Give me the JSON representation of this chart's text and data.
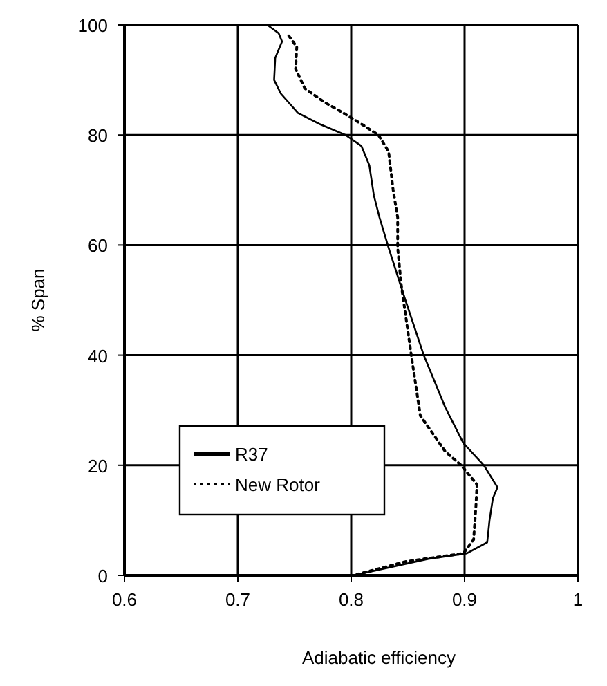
{
  "chart_data": {
    "type": "line",
    "xlabel": "Adiabatic efficiency",
    "ylabel": "% Span",
    "xlim": [
      0.6,
      1
    ],
    "xticks": [
      0.6,
      0.7,
      0.8,
      0.9,
      1
    ],
    "ylim": [
      0,
      100
    ],
    "yticks": [
      0,
      20,
      40,
      60,
      80,
      100
    ],
    "grid": true,
    "legend": "bottom left",
    "marker": "none",
    "series": [
      {
        "name": "R37",
        "color": "#000000",
        "line_style": "solid",
        "x": [
          0.726,
          0.736,
          0.739,
          0.733,
          0.732,
          0.738,
          0.753,
          0.772,
          0.795,
          0.809,
          0.816,
          0.82,
          0.825,
          0.833,
          0.847,
          0.864,
          0.883,
          0.899,
          0.917,
          0.929,
          0.925,
          0.922,
          0.92,
          0.902,
          0.868,
          0.802
        ],
        "values": [
          100,
          98.5,
          97,
          94,
          90,
          87.5,
          84,
          82,
          80,
          78,
          74.5,
          69,
          65,
          59.5,
          50.5,
          40,
          30.5,
          24,
          20,
          16,
          14,
          10,
          6,
          4,
          3,
          0
        ]
      },
      {
        "name": "New Rotor",
        "color": "#000000",
        "line_style": "dotted",
        "x": [
          0.745,
          0.752,
          0.751,
          0.759,
          0.776,
          0.793,
          0.809,
          0.824,
          0.833,
          0.837,
          0.841,
          0.841,
          0.844,
          0.853,
          0.861,
          0.883,
          0.897,
          0.911,
          0.91,
          0.908,
          0.899,
          0.848,
          0.802
        ],
        "values": [
          98,
          96,
          92,
          88.5,
          86,
          84,
          82,
          80,
          77,
          70,
          65,
          59.5,
          53,
          40,
          29,
          22.5,
          20,
          16.5,
          12.5,
          6.5,
          4,
          2.5,
          0
        ]
      }
    ]
  }
}
